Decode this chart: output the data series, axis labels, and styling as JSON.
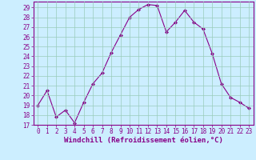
{
  "x": [
    0,
    1,
    2,
    3,
    4,
    5,
    6,
    7,
    8,
    9,
    10,
    11,
    12,
    13,
    14,
    15,
    16,
    17,
    18,
    19,
    20,
    21,
    22,
    23
  ],
  "y": [
    19,
    20.5,
    17.8,
    18.5,
    17.2,
    19.3,
    21.2,
    22.3,
    24.4,
    26.2,
    28.0,
    28.8,
    29.3,
    29.2,
    26.5,
    27.5,
    28.7,
    27.5,
    26.8,
    24.3,
    21.2,
    19.8,
    19.3,
    18.7
  ],
  "line_color": "#880088",
  "marker": "D",
  "marker_size": 2.0,
  "background_color": "#cceeff",
  "grid_color": "#99ccbb",
  "xlabel": "Windchill (Refroidissement éolien,°C)",
  "xlim": [
    -0.5,
    23.5
  ],
  "ylim": [
    17,
    29.6
  ],
  "yticks": [
    17,
    18,
    19,
    20,
    21,
    22,
    23,
    24,
    25,
    26,
    27,
    28,
    29
  ],
  "xticks": [
    0,
    1,
    2,
    3,
    4,
    5,
    6,
    7,
    8,
    9,
    10,
    11,
    12,
    13,
    14,
    15,
    16,
    17,
    18,
    19,
    20,
    21,
    22,
    23
  ],
  "tick_fontsize": 5.5,
  "xlabel_fontsize": 6.5,
  "line_color_hex": "#880088",
  "spine_color": "#880088",
  "tick_color": "#880088"
}
